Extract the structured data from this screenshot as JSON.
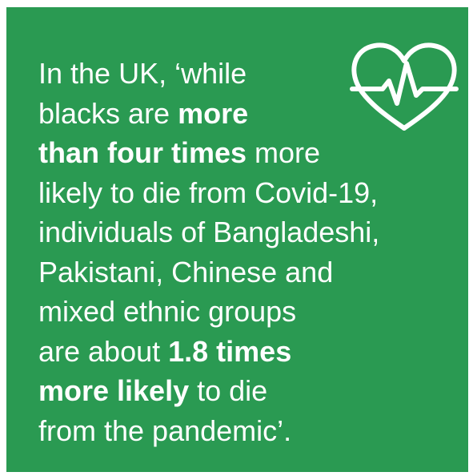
{
  "quote": {
    "l1": "In the UK, ‘while",
    "l2a": "blacks are ",
    "l2b": "more",
    "l3a": "than four times",
    "l3b": " more",
    "l4": "likely to die from Covid-19,",
    "l5": "individuals of Bangladeshi,",
    "l6": "Pakistani, Chinese and",
    "l7": "mixed ethnic groups",
    "l8a": "are about ",
    "l8b": "1.8 times",
    "l9a": "more likely",
    "l9b": " to die",
    "l10": "from the pandemic’."
  },
  "colors": {
    "background": "#2a9a52",
    "text": "#ffffff"
  },
  "icon": "heart-heartbeat-icon"
}
